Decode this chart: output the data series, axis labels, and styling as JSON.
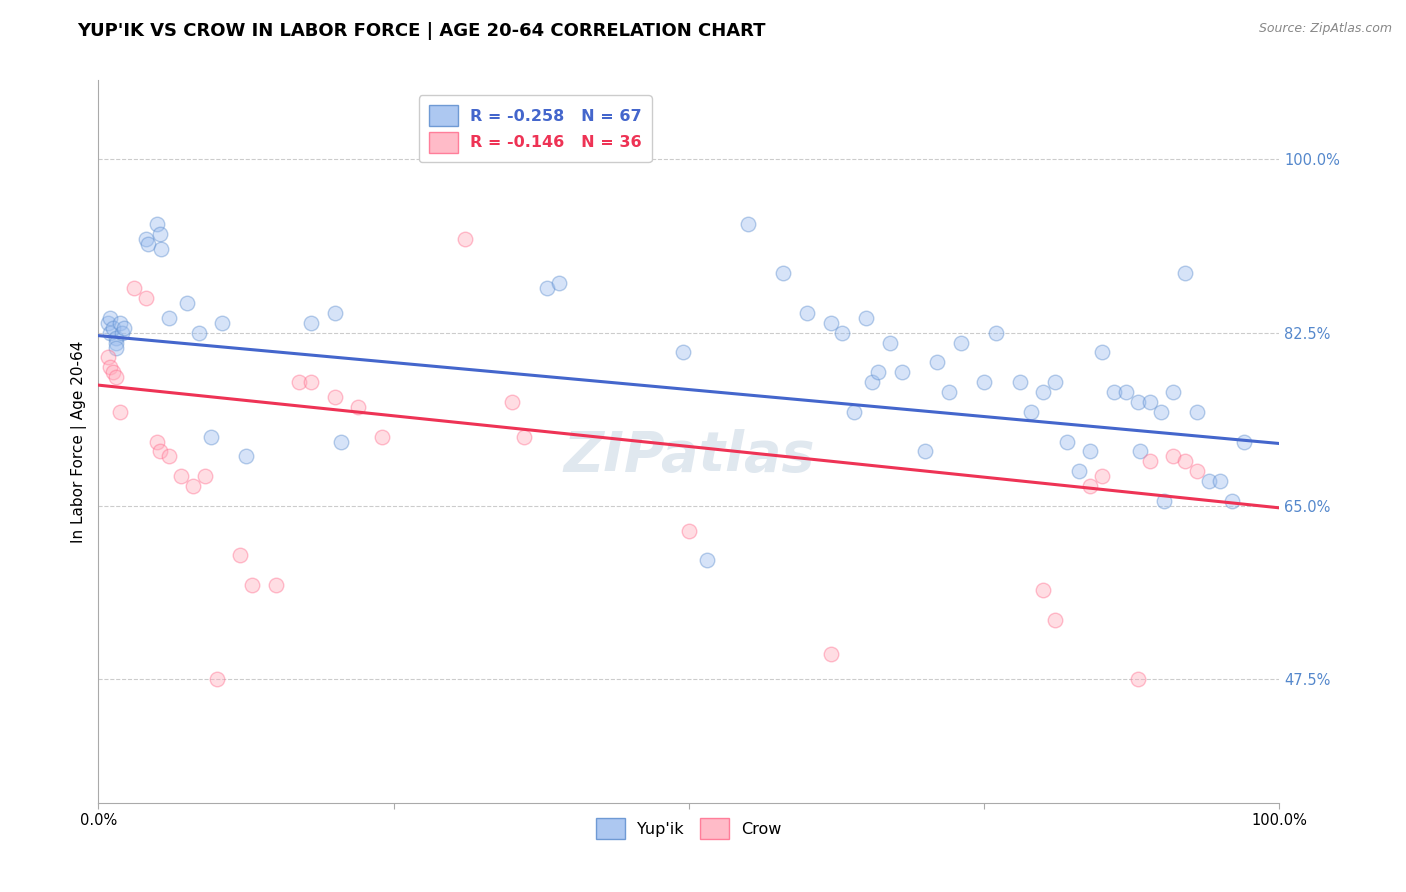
{
  "title": "YUP'IK VS CROW IN LABOR FORCE | AGE 20-64 CORRELATION CHART",
  "source": "Source: ZipAtlas.com",
  "ylabel": "In Labor Force | Age 20-64",
  "xlim": [
    0.0,
    1.0
  ],
  "ylim": [
    0.35,
    1.08
  ],
  "yticks": [
    0.475,
    0.65,
    0.825,
    1.0
  ],
  "ytick_labels": [
    "47.5%",
    "65.0%",
    "82.5%",
    "100.0%"
  ],
  "legend_entry_blue": "R = -0.258   N = 67",
  "legend_entry_pink": "R = -0.146   N = 36",
  "legend_label_blue": "Yup'ik",
  "legend_label_pink": "Crow",
  "watermark": "ZIPatlas",
  "blue_scatter": [
    [
      0.008,
      0.835
    ],
    [
      0.01,
      0.84
    ],
    [
      0.01,
      0.825
    ],
    [
      0.012,
      0.83
    ],
    [
      0.015,
      0.82
    ],
    [
      0.015,
      0.815
    ],
    [
      0.015,
      0.81
    ],
    [
      0.018,
      0.835
    ],
    [
      0.02,
      0.825
    ],
    [
      0.022,
      0.83
    ],
    [
      0.04,
      0.92
    ],
    [
      0.042,
      0.915
    ],
    [
      0.05,
      0.935
    ],
    [
      0.052,
      0.925
    ],
    [
      0.053,
      0.91
    ],
    [
      0.06,
      0.84
    ],
    [
      0.075,
      0.855
    ],
    [
      0.085,
      0.825
    ],
    [
      0.095,
      0.72
    ],
    [
      0.105,
      0.835
    ],
    [
      0.125,
      0.7
    ],
    [
      0.18,
      0.835
    ],
    [
      0.2,
      0.845
    ],
    [
      0.205,
      0.715
    ],
    [
      0.38,
      0.87
    ],
    [
      0.39,
      0.875
    ],
    [
      0.495,
      0.805
    ],
    [
      0.515,
      0.595
    ],
    [
      0.55,
      0.935
    ],
    [
      0.58,
      0.885
    ],
    [
      0.6,
      0.845
    ],
    [
      0.62,
      0.835
    ],
    [
      0.63,
      0.825
    ],
    [
      0.64,
      0.745
    ],
    [
      0.65,
      0.84
    ],
    [
      0.655,
      0.775
    ],
    [
      0.66,
      0.785
    ],
    [
      0.67,
      0.815
    ],
    [
      0.68,
      0.785
    ],
    [
      0.7,
      0.705
    ],
    [
      0.71,
      0.795
    ],
    [
      0.72,
      0.765
    ],
    [
      0.73,
      0.815
    ],
    [
      0.75,
      0.775
    ],
    [
      0.76,
      0.825
    ],
    [
      0.78,
      0.775
    ],
    [
      0.79,
      0.745
    ],
    [
      0.8,
      0.765
    ],
    [
      0.81,
      0.775
    ],
    [
      0.82,
      0.715
    ],
    [
      0.83,
      0.685
    ],
    [
      0.84,
      0.705
    ],
    [
      0.85,
      0.805
    ],
    [
      0.86,
      0.765
    ],
    [
      0.87,
      0.765
    ],
    [
      0.88,
      0.755
    ],
    [
      0.882,
      0.705
    ],
    [
      0.89,
      0.755
    ],
    [
      0.9,
      0.745
    ],
    [
      0.902,
      0.655
    ],
    [
      0.91,
      0.765
    ],
    [
      0.92,
      0.885
    ],
    [
      0.93,
      0.745
    ],
    [
      0.94,
      0.675
    ],
    [
      0.95,
      0.675
    ],
    [
      0.96,
      0.655
    ],
    [
      0.97,
      0.715
    ]
  ],
  "pink_scatter": [
    [
      0.008,
      0.8
    ],
    [
      0.01,
      0.79
    ],
    [
      0.012,
      0.785
    ],
    [
      0.015,
      0.78
    ],
    [
      0.018,
      0.745
    ],
    [
      0.03,
      0.87
    ],
    [
      0.04,
      0.86
    ],
    [
      0.05,
      0.715
    ],
    [
      0.052,
      0.705
    ],
    [
      0.06,
      0.7
    ],
    [
      0.07,
      0.68
    ],
    [
      0.08,
      0.67
    ],
    [
      0.09,
      0.68
    ],
    [
      0.1,
      0.475
    ],
    [
      0.12,
      0.6
    ],
    [
      0.13,
      0.57
    ],
    [
      0.15,
      0.57
    ],
    [
      0.17,
      0.775
    ],
    [
      0.18,
      0.775
    ],
    [
      0.2,
      0.76
    ],
    [
      0.22,
      0.75
    ],
    [
      0.24,
      0.72
    ],
    [
      0.31,
      0.92
    ],
    [
      0.35,
      0.755
    ],
    [
      0.36,
      0.72
    ],
    [
      0.5,
      0.625
    ],
    [
      0.62,
      0.5
    ],
    [
      0.8,
      0.565
    ],
    [
      0.81,
      0.535
    ],
    [
      0.84,
      0.67
    ],
    [
      0.85,
      0.68
    ],
    [
      0.88,
      0.475
    ],
    [
      0.89,
      0.695
    ],
    [
      0.91,
      0.7
    ],
    [
      0.92,
      0.695
    ],
    [
      0.93,
      0.685
    ]
  ],
  "blue_line": {
    "x0": 0.0,
    "y0": 0.822,
    "x1": 1.0,
    "y1": 0.713
  },
  "pink_line": {
    "x0": 0.0,
    "y0": 0.772,
    "x1": 1.0,
    "y1": 0.648
  },
  "scatter_size": 110,
  "scatter_alpha": 0.4,
  "scatter_linewidth": 1.0,
  "blue_face": "#99bbee",
  "blue_edge": "#5588cc",
  "pink_face": "#ffaabb",
  "pink_edge": "#ff6688",
  "line_blue": "#4466cc",
  "line_pink": "#ee3355",
  "title_fontsize": 13,
  "axis_label_fontsize": 11,
  "tick_fontsize": 10.5,
  "tick_color_right": "#5588cc",
  "watermark_fontsize": 40,
  "watermark_color": "#bbccdd",
  "watermark_alpha": 0.45,
  "grid_color": "#cccccc",
  "background_color": "#ffffff",
  "source_fontsize": 9,
  "legend_box_color": "#ddeeff",
  "legend_box_edge_blue": "#8899cc",
  "legend_box_edge_pink": "#ffaacc"
}
